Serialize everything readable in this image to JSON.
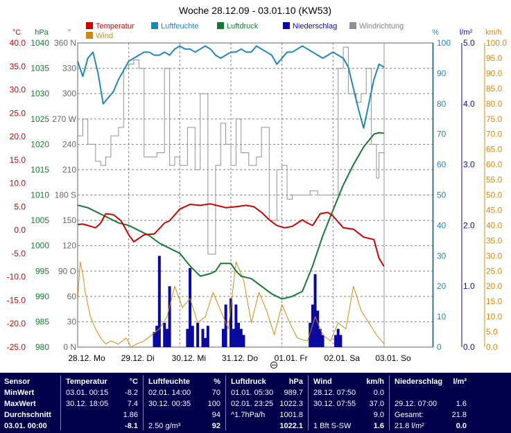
{
  "chart_data": {
    "type": "line",
    "title": "Woche 28.12.09 - 03.01.10 (KW53)",
    "legend": [
      {
        "label": "Temperatur",
        "color": "#cc0000"
      },
      {
        "label": "Luftfeuchte",
        "color": "#1e86b8"
      },
      {
        "label": "Luftdruck",
        "color": "#157a30"
      },
      {
        "label": "Niederschlag",
        "color": "#0a0aa0"
      },
      {
        "label": "Windrichtung",
        "color": "#909090"
      },
      {
        "label": "Wind",
        "color": "#d08a10"
      }
    ],
    "x_labels": [
      "28.12. Mo",
      "29.12. Di",
      "30.12. Mi",
      "31.12. Do",
      "01.01. Fr",
      "02.01. Sa",
      "03.01. So"
    ],
    "axes": {
      "temperature": {
        "unit": "°C",
        "color": "#cc0000",
        "ticks": [
          "40.0",
          "35.0",
          "30.0",
          "25.0",
          "20.0",
          "15.0",
          "10.0",
          "5.0",
          "0.0",
          "-5.0",
          "-10.0",
          "-15.0",
          "-20.0",
          "-25.0"
        ],
        "range": [
          -25,
          40
        ]
      },
      "pressure": {
        "unit": "hPa",
        "color": "#157a30",
        "ticks": [
          "1040",
          "1035",
          "1030",
          "1025",
          "1020",
          "1015",
          "1010",
          "1005",
          "1000",
          "995",
          "990",
          "985",
          "980"
        ],
        "range": [
          980,
          1040
        ]
      },
      "direction": {
        "unit": "°",
        "color": "#666666",
        "ticks": [
          "360 N",
          "330",
          "300",
          "270 W",
          "240",
          "210",
          "180 S",
          "150",
          "120",
          "90 O",
          "60",
          "30",
          "0 N"
        ],
        "range": [
          0,
          360
        ]
      },
      "humidity": {
        "unit": "%",
        "color": "#1e86b8",
        "ticks": [
          "100",
          "90",
          "80",
          "70",
          "60",
          "50",
          "40",
          "30",
          "20",
          "10",
          "0"
        ],
        "range": [
          0,
          100
        ]
      },
      "rain": {
        "unit": "l/m²",
        "color": "#0a0aa0",
        "ticks": [
          "5.0",
          "4.0",
          "3.0",
          "2.0",
          "1.0",
          "0.0"
        ],
        "range": [
          0,
          5
        ]
      },
      "wind": {
        "unit": "km/h",
        "color": "#d08a10",
        "ticks": [
          "100.0",
          "95.0",
          "90.0",
          "85.0",
          "80.0",
          "75.0",
          "70.0",
          "65.0",
          "60.0",
          "55.0",
          "50.0",
          "45.0",
          "40.0",
          "35.0",
          "30.0",
          "25.0",
          "20.0",
          "15.0",
          "10.0",
          "5.0",
          "0.0"
        ],
        "range": [
          0,
          100
        ]
      }
    },
    "series": {
      "temperature": {
        "x": [
          0,
          0.1,
          0.2,
          0.35,
          0.45,
          0.55,
          0.7,
          0.85,
          1.0,
          1.1,
          1.3,
          1.5,
          1.7,
          1.8,
          2.0,
          2.2,
          2.4,
          2.6,
          2.75,
          2.9,
          3.1,
          3.3,
          3.45,
          3.6,
          3.75,
          3.9,
          4.05,
          4.2,
          4.4,
          4.5,
          4.6,
          4.75,
          4.9,
          5.0,
          5.2,
          5.4,
          5.6,
          5.8,
          5.9,
          6.0
        ],
        "y": [
          1.2,
          1.3,
          1.0,
          0.5,
          1.5,
          3.5,
          3.3,
          2.0,
          -1.0,
          -2.5,
          -1.0,
          -0.8,
          1.5,
          2.0,
          4.5,
          5.5,
          5.3,
          5.6,
          5.2,
          4.8,
          5.0,
          5.3,
          5.0,
          3.8,
          2.2,
          1.0,
          0.5,
          0.8,
          2.2,
          1.5,
          1.0,
          3.5,
          3.8,
          3.0,
          0.5,
          0.2,
          -1.5,
          -2.0,
          -6.0,
          -7.8
        ]
      },
      "humidity": {
        "x": [
          0,
          0.1,
          0.2,
          0.3,
          0.4,
          0.5,
          0.6,
          0.7,
          0.8,
          0.9,
          1.0,
          1.1,
          1.2,
          1.3,
          1.4,
          1.5,
          1.6,
          1.7,
          1.8,
          1.9,
          2.0,
          2.1,
          2.2,
          2.3,
          2.4,
          2.5,
          2.6,
          2.7,
          2.8,
          2.9,
          3.0,
          3.1,
          3.2,
          3.3,
          3.4,
          3.5,
          3.6,
          3.7,
          3.8,
          3.9,
          4.0,
          4.1,
          4.2,
          4.3,
          4.4,
          4.5,
          4.6,
          4.7,
          4.8,
          4.9,
          5.0,
          5.1,
          5.2,
          5.3,
          5.4,
          5.5,
          5.6,
          5.7,
          5.8,
          5.9,
          6.0
        ],
        "y": [
          94,
          89,
          95,
          97,
          90,
          80,
          82,
          84,
          88,
          91,
          94,
          95,
          96,
          97,
          97,
          96,
          96,
          97,
          96,
          98,
          99,
          98,
          98,
          97,
          98,
          99,
          98,
          96,
          95,
          96,
          97,
          97,
          98,
          97,
          97,
          99,
          98,
          97,
          96,
          93,
          95,
          97,
          97,
          98,
          99,
          98,
          97,
          96,
          95,
          96,
          97,
          96,
          95,
          92,
          85,
          78,
          72,
          80,
          88,
          93,
          92
        ]
      },
      "pressure": {
        "x": [
          0,
          0.2,
          0.4,
          0.6,
          0.8,
          1.0,
          1.2,
          1.4,
          1.6,
          1.8,
          2.0,
          2.2,
          2.4,
          2.6,
          2.7,
          2.8,
          3.0,
          3.1,
          3.2,
          3.4,
          3.6,
          3.8,
          4.0,
          4.2,
          4.4,
          4.6,
          4.8,
          5.0,
          5.2,
          5.4,
          5.6,
          5.8,
          5.9,
          6.0
        ],
        "y": [
          1008,
          1007.5,
          1006.5,
          1005.5,
          1004.5,
          1004,
          1003,
          1002,
          1000.5,
          999.5,
          998.5,
          996,
          994,
          994.5,
          995,
          996.5,
          996.5,
          995,
          994,
          993.5,
          992,
          990.5,
          989.5,
          990,
          991,
          996,
          1002,
          1007,
          1012,
          1016,
          1019.5,
          1022,
          1022.3,
          1022.2
        ]
      },
      "winddir": {
        "x": [
          0,
          0.1,
          0.2,
          0.35,
          0.45,
          0.55,
          0.65,
          0.8,
          0.9,
          1.0,
          1.1,
          1.2,
          1.3,
          1.45,
          1.55,
          1.7,
          1.8,
          1.9,
          2.0,
          2.15,
          2.3,
          2.4,
          2.55,
          2.7,
          2.8,
          2.9,
          3.0,
          3.1,
          3.2,
          3.35,
          3.5,
          3.6,
          3.75,
          3.9,
          4.0,
          4.1,
          4.2,
          4.4,
          4.55,
          4.7,
          4.85,
          5.0,
          5.1,
          5.2,
          5.3,
          5.45,
          5.55,
          5.65,
          5.75,
          5.85,
          5.9,
          6.0
        ],
        "y": [
          250,
          270,
          240,
          220,
          215,
          225,
          250,
          260,
          330,
          335,
          340,
          330,
          225,
          225,
          230,
          330,
          215,
          225,
          215,
          260,
          210,
          300,
          110,
          215,
          265,
          240,
          215,
          270,
          230,
          215,
          225,
          260,
          150,
          210,
          215,
          175,
          180,
          180,
          185,
          180,
          180,
          180,
          330,
          355,
          300,
          290,
          300,
          330,
          240,
          200,
          230,
          200
        ]
      },
      "wind": {
        "x": [
          0,
          0.05,
          0.1,
          0.15,
          0.25,
          0.35,
          0.45,
          0.55,
          0.65,
          0.8,
          0.95,
          1.05,
          1.15,
          1.3,
          1.45,
          1.6,
          1.75,
          1.9,
          2.05,
          2.2,
          2.35,
          2.5,
          2.65,
          2.8,
          2.95,
          3.1,
          3.25,
          3.4,
          3.55,
          3.7,
          3.85,
          4.0,
          4.15,
          4.3,
          4.5,
          4.65,
          4.8,
          4.95,
          5.1,
          5.25,
          5.4,
          5.55,
          5.7,
          5.85,
          6.0
        ],
        "y": [
          16,
          28,
          24,
          18,
          10,
          6,
          3,
          1,
          2,
          1,
          3,
          0,
          1,
          2,
          4,
          6,
          10,
          20,
          13,
          16,
          8,
          10,
          18,
          12,
          6,
          28,
          22,
          8,
          18,
          12,
          4,
          14,
          8,
          3,
          2,
          10,
          4,
          2,
          8,
          6,
          20,
          12,
          8,
          4,
          1
        ]
      },
      "rain": {
        "x": [
          1.5,
          1.55,
          1.6,
          1.7,
          1.75,
          1.8,
          2.15,
          2.2,
          2.25,
          2.35,
          2.45,
          2.5,
          2.55,
          2.85,
          2.9,
          3.0,
          3.05,
          3.1,
          3.15,
          3.2,
          3.25,
          4.55,
          4.6,
          4.65,
          4.7,
          4.75,
          4.8,
          5.05,
          5.1,
          5.15
        ],
        "y": [
          0.25,
          0.35,
          1.5,
          0.4,
          0.3,
          1.0,
          0.3,
          1.3,
          0.35,
          0.4,
          0.3,
          0.15,
          0.35,
          0.3,
          0.7,
          0.8,
          0.3,
          0.7,
          0.4,
          0.3,
          0.2,
          0.4,
          0.7,
          1.2,
          0.6,
          0.3,
          0.2,
          0.2,
          0.3,
          0.2
        ]
      }
    }
  },
  "footer": {
    "sensor": {
      "header": "Sensor",
      "rows": [
        "MinWert",
        "MaxWert",
        "Durchschnitt"
      ],
      "current_label": "03.01. 00:00"
    },
    "temperatur": {
      "header": "Temperatur",
      "unit": "°C",
      "rows": [
        {
          "time": "03.01. 00:15",
          "val": "-8.2"
        },
        {
          "time": "30.12. 18:05",
          "val": "7.4"
        },
        {
          "time": "",
          "val": "1.86"
        }
      ],
      "current": "-8.1"
    },
    "luftfeuchte": {
      "header": "Luftfeuchte",
      "unit": "%",
      "rows": [
        {
          "time": "02.01. 14:00",
          "val": "70"
        },
        {
          "time": "30.12. 00:35",
          "val": "100"
        },
        {
          "time": "",
          "val": "94"
        }
      ],
      "current_extra": "2.50 g/m³",
      "current": "92"
    },
    "luftdruck": {
      "header": "Luftdruck",
      "unit": "hPa",
      "rows": [
        {
          "time": "01.01. 05:30",
          "val": "989.7"
        },
        {
          "time": "02.01. 23:25",
          "val": "1022.3"
        },
        {
          "time": "^1.7hPa/h",
          "val": "1001.8"
        }
      ],
      "current": "1022.1"
    },
    "wind": {
      "header": "Wind",
      "unit": "km/h",
      "rows": [
        {
          "time": "28.12. 07:50",
          "val": "0.0"
        },
        {
          "time": "30.12. 07:55",
          "val": "37.0"
        },
        {
          "time": "",
          "val": "9.0"
        }
      ],
      "current_extra": "1 Bft S-SW",
      "current": "1.6"
    },
    "niederschlag": {
      "header": "Niederschlag",
      "unit": "l/m²",
      "rows": [
        {
          "time": "",
          "val": ""
        },
        {
          "time": "29.12. 07:00",
          "val": "1.6"
        },
        {
          "time": "Gesamt:",
          "val": "21.8"
        }
      ],
      "current_extra": "21.8 l/m²",
      "current": "0.0"
    }
  }
}
